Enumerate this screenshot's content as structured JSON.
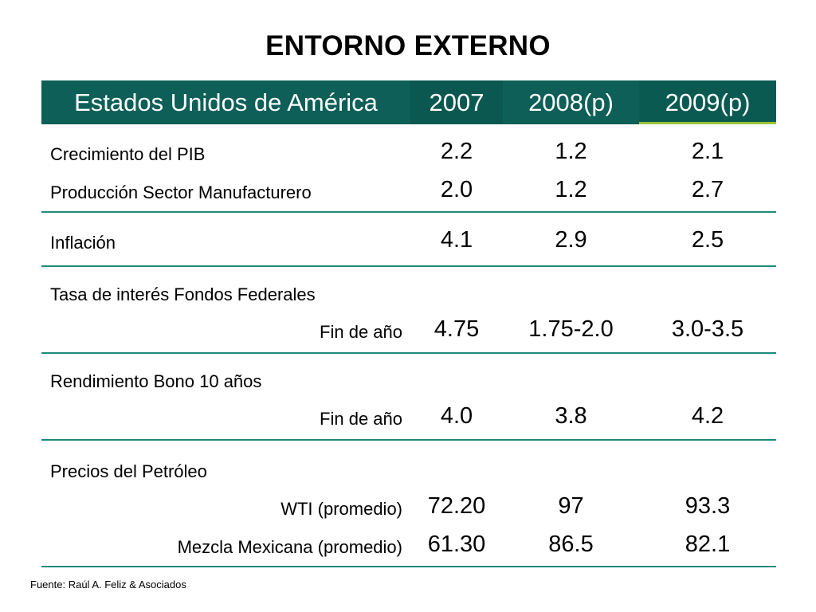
{
  "title": "ENTORNO EXTERNO",
  "header": {
    "label": "Estados Unidos de América",
    "col1": "2007",
    "col2": "2008(p)",
    "col3": "2009(p)"
  },
  "colors": {
    "header_bg": "#0d5f57",
    "rule": "#1f8a7d",
    "accent": "#9cc43a"
  },
  "rows": {
    "pib": {
      "label": "Crecimiento del PIB",
      "v2007": "2.2",
      "v2008": "1.2",
      "v2009": "2.1"
    },
    "manuf": {
      "label": "Producción Sector Manufacturero",
      "v2007": "2.0",
      "v2008": "1.2",
      "v2009": "2.7"
    },
    "inflacion": {
      "label": "Inflación",
      "v2007": "4.1",
      "v2008": "2.9",
      "v2009": "2.5"
    },
    "fondos": {
      "label": "Tasa de interés Fondos Federales",
      "sublabel": "Fin de año",
      "v2007": "4.75",
      "v2008": "1.75-2.0",
      "v2009": "3.0-3.5"
    },
    "bono": {
      "label": "Rendimiento Bono 10 años",
      "sublabel": "Fin de año",
      "v2007": "4.0",
      "v2008": "3.8",
      "v2009": "4.2"
    },
    "petroleo": {
      "label": "Precios del Petróleo",
      "wti": {
        "label": "WTI (promedio)",
        "v2007": "72.20",
        "v2008": "97",
        "v2009": "93.3"
      },
      "mezcla": {
        "label": "Mezcla Mexicana (promedio)",
        "v2007": "61.30",
        "v2008": "86.5",
        "v2009": "82.1"
      }
    }
  },
  "source": "Fuente: Raúl A. Feliz & Asociados"
}
